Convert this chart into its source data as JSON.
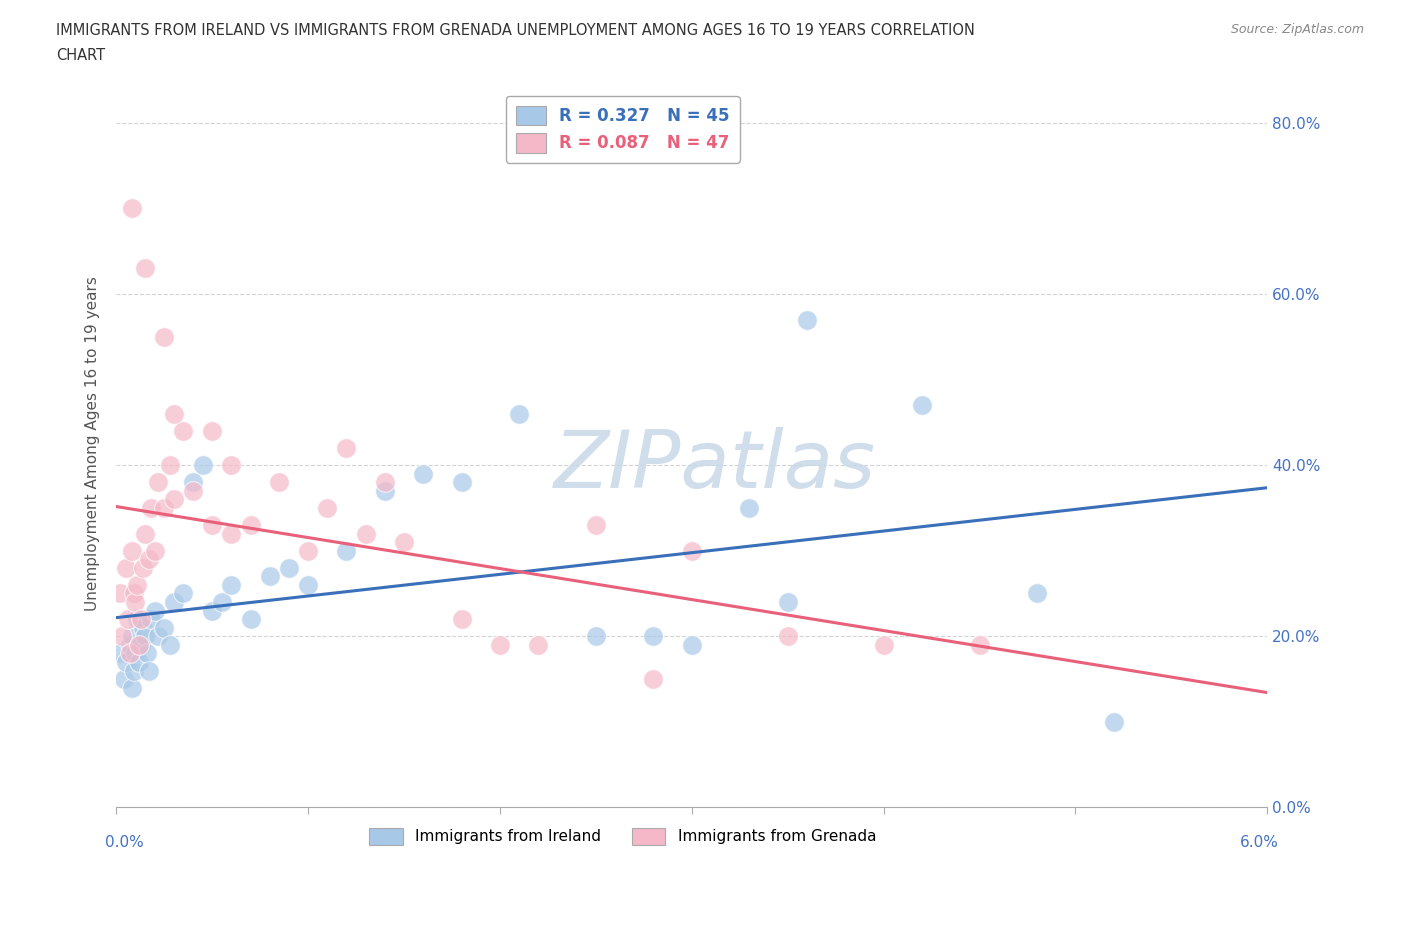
{
  "title_line1": "IMMIGRANTS FROM IRELAND VS IMMIGRANTS FROM GRENADA UNEMPLOYMENT AMONG AGES 16 TO 19 YEARS CORRELATION",
  "title_line2": "CHART",
  "source": "Source: ZipAtlas.com",
  "ylabel": "Unemployment Among Ages 16 to 19 years",
  "xlim": [
    0.0,
    6.0
  ],
  "ylim": [
    0.0,
    85.0
  ],
  "yticks": [
    0,
    20,
    40,
    60,
    80
  ],
  "ytick_labels": [
    "0.0%",
    "20.0%",
    "40.0%",
    "60.0%",
    "80.0%"
  ],
  "ireland_R": 0.327,
  "ireland_N": 45,
  "grenada_R": 0.087,
  "grenada_N": 47,
  "ireland_color": "#a8c8e8",
  "grenada_color": "#f4b8c8",
  "ireland_line_color": "#3a6fba",
  "grenada_line_color": "#e8607a",
  "ireland_label_color": "#3a6fba",
  "grenada_label_color": "#e8607a",
  "axis_label_color": "#4472c4",
  "background_color": "#ffffff",
  "grid_color": "#d0d0d0",
  "watermark_text": "ZIPatlas",
  "watermark_color": "#c8d8e8",
  "ireland_x": [
    0.02,
    0.04,
    0.05,
    0.07,
    0.08,
    0.08,
    0.09,
    0.1,
    0.11,
    0.12,
    0.13,
    0.14,
    0.15,
    0.16,
    0.17,
    0.18,
    0.2,
    0.22,
    0.25,
    0.28,
    0.3,
    0.35,
    0.4,
    0.45,
    0.5,
    0.55,
    0.6,
    0.7,
    0.8,
    0.9,
    1.0,
    1.2,
    1.4,
    1.6,
    1.8,
    2.1,
    2.5,
    2.8,
    3.0,
    3.3,
    3.5,
    4.2,
    4.8,
    5.2,
    3.6
  ],
  "ireland_y": [
    18,
    15,
    17,
    19,
    14,
    20,
    16,
    18,
    22,
    17,
    19,
    21,
    20,
    18,
    16,
    22,
    23,
    20,
    21,
    19,
    24,
    25,
    38,
    40,
    23,
    24,
    26,
    22,
    27,
    28,
    26,
    30,
    37,
    39,
    38,
    46,
    20,
    20,
    19,
    35,
    24,
    47,
    25,
    10,
    57
  ],
  "grenada_x": [
    0.02,
    0.03,
    0.05,
    0.06,
    0.07,
    0.08,
    0.09,
    0.1,
    0.11,
    0.12,
    0.13,
    0.14,
    0.15,
    0.17,
    0.18,
    0.2,
    0.22,
    0.25,
    0.28,
    0.3,
    0.35,
    0.4,
    0.5,
    0.6,
    0.7,
    0.85,
    1.0,
    1.1,
    1.3,
    1.5,
    1.8,
    2.0,
    2.2,
    2.5,
    3.0,
    3.5,
    4.0,
    4.5,
    0.08,
    0.15,
    0.25,
    0.3,
    0.5,
    0.6,
    1.2,
    1.4,
    2.8
  ],
  "grenada_y": [
    25,
    20,
    28,
    22,
    18,
    30,
    25,
    24,
    26,
    19,
    22,
    28,
    32,
    29,
    35,
    30,
    38,
    35,
    40,
    36,
    44,
    37,
    33,
    40,
    33,
    38,
    30,
    35,
    32,
    31,
    22,
    19,
    19,
    33,
    30,
    20,
    19,
    19,
    70,
    63,
    55,
    46,
    44,
    32,
    42,
    38,
    15
  ]
}
